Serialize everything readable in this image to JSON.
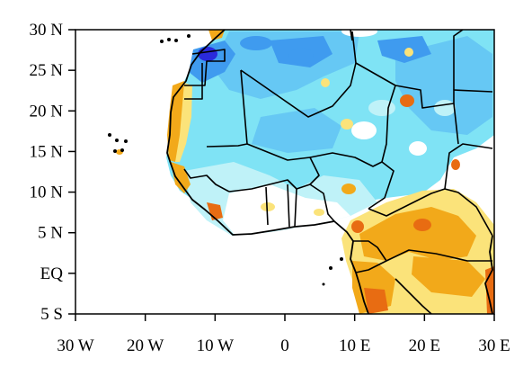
{
  "map": {
    "lat_ticks": [
      "30 N",
      "25 N",
      "20 N",
      "15 N",
      "10 N",
      "5 N",
      "EQ",
      "5 S"
    ],
    "lon_ticks": [
      "30 W",
      "20 W",
      "10 W",
      "0",
      "10 E",
      "20 E",
      "30 E"
    ],
    "extent": {
      "lon_min": -30,
      "lon_max": 30,
      "lat_min": -5,
      "lat_max": 30
    },
    "colors": {
      "dark_blue": "#2a2adc",
      "blue": "#3f9bef",
      "light_blue": "#66c8f4",
      "cyan": "#7fe3f5",
      "pale_cyan": "#bff2f8",
      "yellow": "#fbe37a",
      "orange": "#f2a91a",
      "dark_orange": "#e86c12",
      "red": "#c62a1a"
    }
  }
}
